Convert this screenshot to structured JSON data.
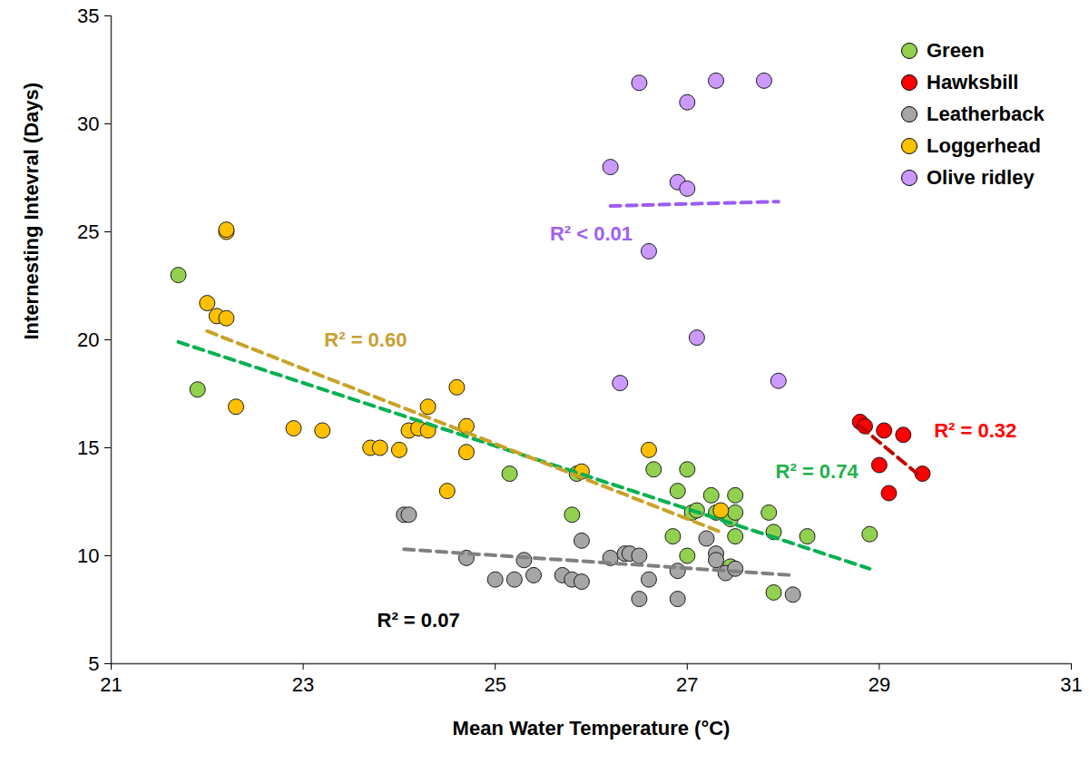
{
  "chart_data": {
    "type": "scatter",
    "x_label": "Mean Water Temperature (°C)",
    "y_label": "Internesting Intevral (Days)",
    "xlim": [
      21,
      31
    ],
    "xticks": [
      21,
      23,
      25,
      27,
      29,
      31
    ],
    "ylim": [
      5,
      35
    ],
    "yticks": [
      5,
      10,
      15,
      20,
      25,
      30,
      35
    ],
    "grid": false,
    "legend": "top-right",
    "series": [
      {
        "name": "Green",
        "type": "scatter",
        "marker": "circle",
        "color": "#92d050",
        "x": [
          21.7,
          21.9,
          25.15,
          25.8,
          25.85,
          26.65,
          26.85,
          26.9,
          27.0,
          27.0,
          27.05,
          27.1,
          27.25,
          27.3,
          27.45,
          27.5,
          27.5,
          27.5,
          27.45,
          27.85,
          27.9,
          27.9,
          28.25,
          28.9
        ],
        "values": [
          23.0,
          17.7,
          13.8,
          11.9,
          13.8,
          14.0,
          10.9,
          13.0,
          14.0,
          10.0,
          12.0,
          12.1,
          12.8,
          12.0,
          11.7,
          12.8,
          12.0,
          10.9,
          9.5,
          12.0,
          11.1,
          8.3,
          10.9,
          11.0
        ]
      },
      {
        "name": "Hawksbill",
        "type": "scatter",
        "marker": "circle",
        "color": "#ff0000",
        "x": [
          28.8,
          28.85,
          29.05,
          29.25,
          29.0,
          29.1,
          29.45
        ],
        "values": [
          16.2,
          16.0,
          15.8,
          15.6,
          14.2,
          12.9,
          13.8
        ]
      },
      {
        "name": "Leatherback",
        "type": "scatter",
        "marker": "circle",
        "color": "#a6a6a6",
        "x": [
          24.05,
          24.1,
          24.7,
          25.0,
          25.2,
          25.3,
          25.4,
          25.7,
          25.8,
          25.9,
          25.9,
          26.2,
          26.35,
          26.4,
          26.5,
          26.5,
          26.6,
          26.9,
          26.9,
          27.2,
          27.3,
          27.3,
          27.4,
          27.5,
          28.1
        ],
        "values": [
          11.9,
          11.9,
          9.9,
          8.9,
          8.9,
          9.8,
          9.1,
          9.1,
          8.9,
          8.8,
          10.7,
          9.9,
          10.1,
          10.1,
          10.0,
          8.0,
          8.9,
          8.0,
          9.3,
          10.8,
          10.1,
          9.8,
          9.2,
          9.4,
          8.2
        ]
      },
      {
        "name": "Loggerhead",
        "type": "scatter",
        "marker": "circle",
        "color": "#ffc000",
        "x": [
          22.2,
          22.2,
          22.0,
          22.1,
          22.2,
          22.3,
          22.9,
          23.2,
          23.7,
          23.8,
          24.0,
          24.1,
          24.2,
          24.3,
          24.3,
          24.5,
          24.6,
          24.7,
          24.7,
          25.9,
          26.6,
          27.35
        ],
        "values": [
          25.0,
          25.1,
          21.7,
          21.1,
          21.0,
          16.9,
          15.9,
          15.8,
          15.0,
          15.0,
          14.9,
          15.8,
          15.9,
          16.9,
          15.8,
          13.0,
          17.8,
          16.0,
          14.8,
          13.9,
          14.9,
          12.1
        ]
      },
      {
        "name": "Olive ridley",
        "type": "scatter",
        "marker": "circle",
        "color": "#cc99ff",
        "x": [
          26.5,
          27.0,
          27.3,
          27.8,
          26.2,
          26.9,
          27.0,
          26.6,
          27.1,
          26.3,
          27.95
        ],
        "values": [
          31.9,
          31.0,
          32.0,
          32.0,
          28.0,
          27.3,
          27.0,
          24.1,
          20.1,
          18.0,
          18.1
        ]
      },
      {
        "name": "Green",
        "type": "line",
        "line_style": "dashed",
        "color": "#00b050",
        "x": [
          21.7,
          28.9
        ],
        "values": [
          19.9,
          9.4
        ]
      },
      {
        "name": "Hawksbill",
        "type": "line",
        "line_style": "dashed",
        "color": "#c00000",
        "x": [
          28.8,
          29.45
        ],
        "values": [
          16.0,
          13.6
        ]
      },
      {
        "name": "Leatherback",
        "type": "line",
        "line_style": "dashed",
        "color": "#808080",
        "x": [
          24.05,
          28.1
        ],
        "values": [
          10.3,
          9.1
        ]
      },
      {
        "name": "Loggerhead",
        "type": "line",
        "line_style": "dashed",
        "color": "#c9a227",
        "x": [
          22.0,
          27.35
        ],
        "values": [
          20.4,
          11.1
        ]
      },
      {
        "name": "Olive ridley",
        "type": "line",
        "line_style": "dashed",
        "color": "#9b5cf6",
        "x": [
          26.2,
          27.95
        ],
        "values": [
          26.2,
          26.4
        ]
      }
    ],
    "annotations": [
      {
        "text": "R² < 0.01",
        "x": 26.0,
        "y": 24.9,
        "color": "#a05ff0"
      },
      {
        "text": "R² = 0.60",
        "x": 23.65,
        "y": 20.0,
        "color": "#c8a032"
      },
      {
        "text": "R² = 0.74",
        "x": 28.35,
        "y": 13.9,
        "color": "#22b14c"
      },
      {
        "text": "R² = 0.32",
        "x": 30.0,
        "y": 15.8,
        "color": "#ff0000"
      },
      {
        "text": "R² = 0.07",
        "x": 24.2,
        "y": 7.0,
        "color": "#000000"
      }
    ]
  }
}
